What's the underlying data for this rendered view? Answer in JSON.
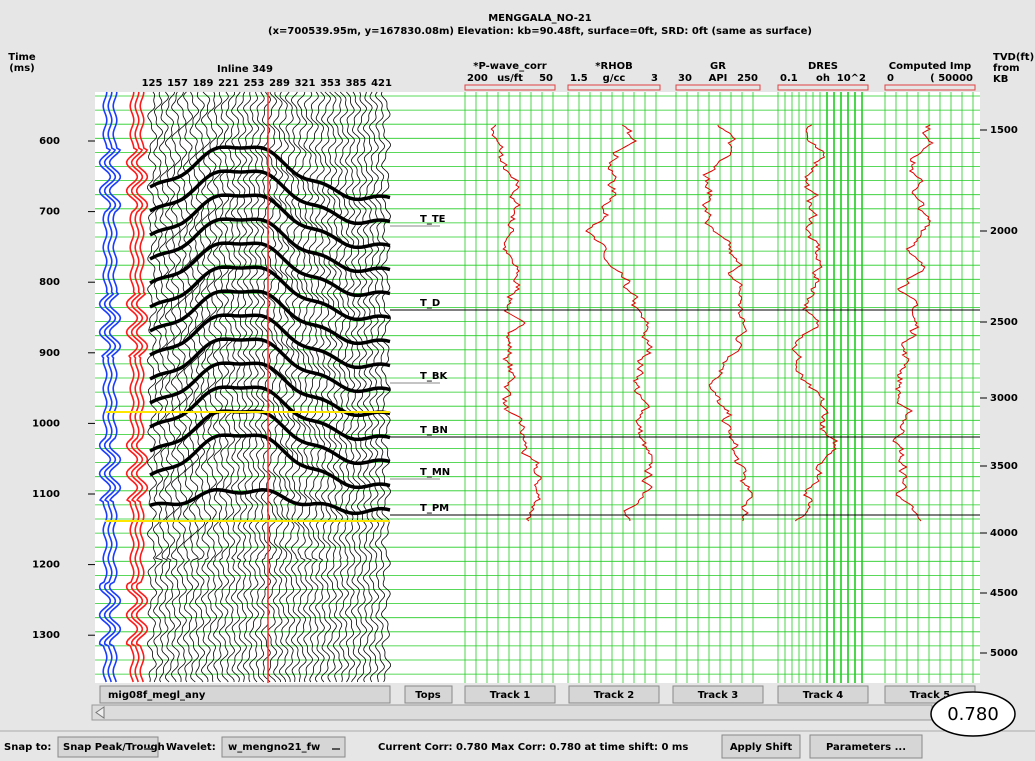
{
  "header": {
    "title": "MENGGALA_NO-21",
    "subtitle": "(x=700539.95m, y=167830.08m) Elevation: kb=90.48ft, surface=0ft, SRD: 0ft (same as surface)"
  },
  "time_axis": {
    "label": [
      "Time",
      "(ms)"
    ],
    "ticks": [
      600,
      700,
      800,
      900,
      1000,
      1100,
      1200,
      1300
    ]
  },
  "tvd_axis": {
    "label": [
      "TVD(ft)",
      "from",
      "KB"
    ],
    "ticks": [
      1500,
      2000,
      2500,
      3000,
      3500,
      4000,
      4500,
      5000
    ]
  },
  "seismic": {
    "title": "Inline 349",
    "traces": [
      "125",
      "157",
      "189",
      "221",
      "253",
      "289",
      "321",
      "353",
      "385",
      "421"
    ],
    "button": "mig08f_megl_any"
  },
  "tracks": [
    {
      "name": "*P-wave_corr",
      "scale": [
        "200",
        "us/ft",
        "50"
      ],
      "button": "Track 1"
    },
    {
      "name": "*RHOB",
      "scale": [
        "1.5",
        "g/cc",
        "3"
      ],
      "button": "Track 2"
    },
    {
      "name": "GR",
      "scale": [
        "30",
        "API",
        "250"
      ],
      "button": "Track 3"
    },
    {
      "name": "DRES",
      "scale": [
        "0.1",
        "oh",
        "10^2"
      ],
      "button": "Track 4"
    },
    {
      "name": "Computed Imp",
      "scale": [
        "0",
        "( 50000"
      ],
      "button": "Track 5"
    }
  ],
  "tops": {
    "button": "Tops",
    "items": [
      {
        "name": "T_TE",
        "color": "#8a8a8a"
      },
      {
        "name": "T_D",
        "color": "#000000"
      },
      {
        "name": "T_BK",
        "color": "#8a8a8a"
      },
      {
        "name": "T_BN",
        "color": "#000000"
      },
      {
        "name": "T_MN",
        "color": "#8a8a8a"
      },
      {
        "name": "T_PM",
        "color": "#000000"
      }
    ]
  },
  "toolbar": {
    "snap_label": "Snap to:",
    "snap_value": "Snap Peak/Trough",
    "wavelet_label": "Wavelet:",
    "wavelet_value": "w_mengno21_fw",
    "status": "Current Corr: 0.780  Max Corr: 0.780 at time shift: 0 ms",
    "apply": "Apply Shift",
    "parameters": "Parameters ..."
  },
  "correlation_badge": "0.780"
}
